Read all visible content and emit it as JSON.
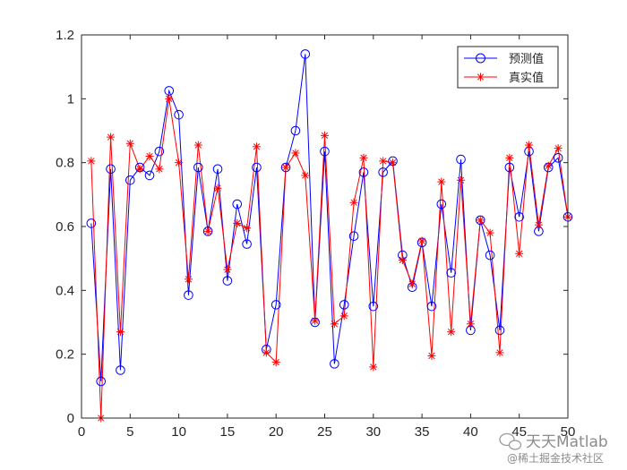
{
  "chart_data": {
    "type": "line",
    "title": "",
    "xlabel": "",
    "ylabel": "",
    "xlim": [
      0,
      50
    ],
    "ylim": [
      0,
      1.2
    ],
    "x_ticks": [
      "0",
      "5",
      "10",
      "15",
      "20",
      "25",
      "30",
      "35",
      "40",
      "45",
      "50"
    ],
    "y_ticks": [
      "0",
      "0.2",
      "0.4",
      "0.6",
      "0.8",
      "1",
      "1.2"
    ],
    "grid": false,
    "legend_position": "top-right",
    "x": [
      1,
      2,
      3,
      4,
      5,
      6,
      7,
      8,
      9,
      10,
      11,
      12,
      13,
      14,
      15,
      16,
      17,
      18,
      19,
      20,
      21,
      22,
      23,
      24,
      25,
      26,
      27,
      28,
      29,
      30,
      31,
      32,
      33,
      34,
      35,
      36,
      37,
      38,
      39,
      40,
      41,
      42,
      43,
      44,
      45,
      46,
      47,
      48,
      49,
      50
    ],
    "series": [
      {
        "name": "预测值",
        "color": "#0000ff",
        "marker": "circle",
        "values": [
          0.61,
          0.115,
          0.78,
          0.15,
          0.745,
          0.785,
          0.76,
          0.835,
          1.025,
          0.95,
          0.385,
          0.785,
          0.585,
          0.78,
          0.43,
          0.67,
          0.545,
          0.785,
          0.215,
          0.355,
          0.785,
          0.9,
          1.14,
          0.3,
          0.835,
          0.17,
          0.355,
          0.57,
          0.77,
          0.35,
          0.77,
          0.805,
          0.51,
          0.41,
          0.55,
          0.35,
          0.67,
          0.455,
          0.81,
          0.275,
          0.62,
          0.51,
          0.275,
          0.785,
          0.63,
          0.835,
          0.585,
          0.785,
          0.815,
          0.63
        ]
      },
      {
        "name": "真实值",
        "color": "#ff0000",
        "marker": "asterisk",
        "values": [
          0.805,
          0.0,
          0.88,
          0.27,
          0.86,
          0.78,
          0.82,
          0.78,
          1.0,
          0.8,
          0.435,
          0.855,
          0.585,
          0.72,
          0.465,
          0.61,
          0.595,
          0.85,
          0.205,
          0.175,
          0.785,
          0.83,
          0.76,
          0.305,
          0.885,
          0.295,
          0.32,
          0.675,
          0.815,
          0.16,
          0.805,
          0.8,
          0.495,
          0.42,
          0.555,
          0.195,
          0.74,
          0.27,
          0.745,
          0.295,
          0.62,
          0.58,
          0.205,
          0.815,
          0.515,
          0.855,
          0.605,
          0.79,
          0.845,
          0.63
        ]
      }
    ]
  },
  "watermark": {
    "line1": "天天Matlab",
    "line2": "@稀土掘金技术社区"
  }
}
